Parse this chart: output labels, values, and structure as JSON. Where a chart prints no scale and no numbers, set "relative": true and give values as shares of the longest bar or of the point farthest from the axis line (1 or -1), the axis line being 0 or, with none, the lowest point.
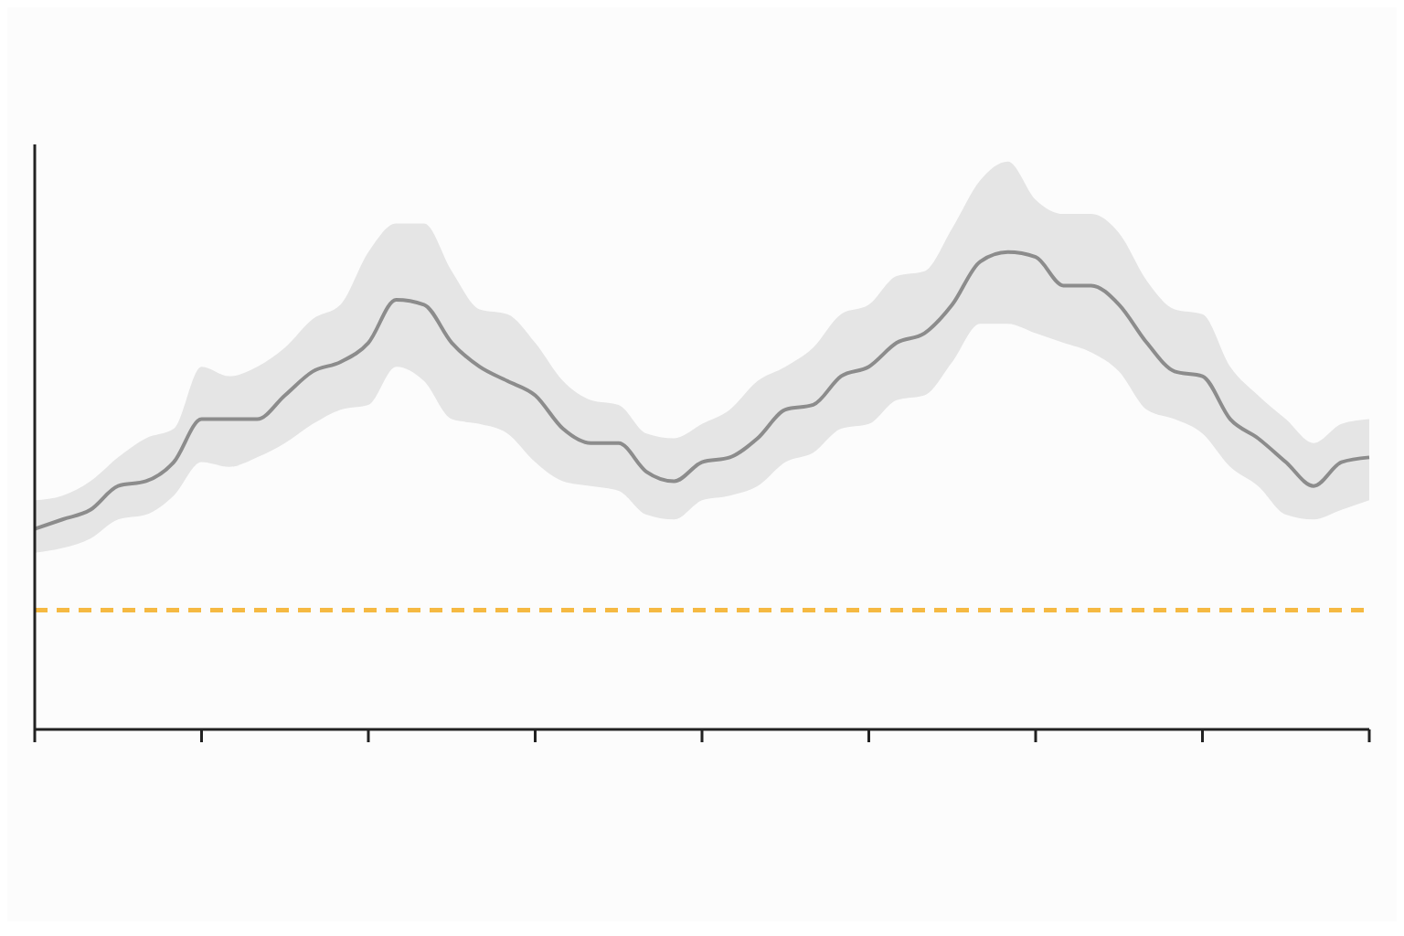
{
  "chart_data": {
    "type": "line",
    "relative": true,
    "grid": false,
    "legend": false,
    "categories": [
      null,
      null,
      null,
      null,
      null,
      null,
      null,
      null,
      null,
      null,
      null,
      null,
      null,
      null,
      null,
      null,
      null,
      null,
      null,
      null,
      null,
      null,
      null,
      null,
      null,
      null,
      null,
      null,
      null,
      null,
      null,
      null,
      null,
      null,
      null,
      null,
      null,
      null,
      null,
      null,
      null,
      null,
      null,
      null,
      null,
      null,
      null,
      null,
      null
    ],
    "series": [
      {
        "color": "#8c8c8c",
        "values": [
          0.42,
          0.44,
          0.46,
          0.51,
          0.52,
          0.56,
          0.65,
          0.65,
          0.65,
          0.7,
          0.75,
          0.77,
          0.81,
          0.9,
          0.89,
          0.81,
          0.76,
          0.73,
          0.7,
          0.63,
          0.6,
          0.6,
          0.54,
          0.52,
          0.56,
          0.57,
          0.61,
          0.67,
          0.68,
          0.74,
          0.76,
          0.81,
          0.83,
          0.89,
          0.98,
          1.0,
          0.99,
          0.93,
          0.93,
          0.89,
          0.81,
          0.75,
          0.74,
          0.65,
          0.61,
          0.56,
          0.51,
          0.56,
          0.57
        ],
        "upper": [
          0.48,
          0.49,
          0.52,
          0.57,
          0.61,
          0.63,
          0.76,
          0.74,
          0.76,
          0.8,
          0.86,
          0.89,
          1.0,
          1.06,
          1.06,
          0.96,
          0.88,
          0.87,
          0.81,
          0.73,
          0.69,
          0.68,
          0.62,
          0.61,
          0.64,
          0.67,
          0.73,
          0.76,
          0.8,
          0.87,
          0.89,
          0.95,
          0.96,
          1.05,
          1.15,
          1.19,
          1.11,
          1.08,
          1.08,
          1.04,
          0.94,
          0.88,
          0.87,
          0.76,
          0.7,
          0.65,
          0.6,
          0.64,
          0.65
        ],
        "lower": [
          0.37,
          0.38,
          0.4,
          0.44,
          0.45,
          0.49,
          0.56,
          0.55,
          0.57,
          0.6,
          0.64,
          0.67,
          0.68,
          0.76,
          0.73,
          0.65,
          0.64,
          0.62,
          0.56,
          0.52,
          0.51,
          0.5,
          0.45,
          0.44,
          0.48,
          0.49,
          0.51,
          0.56,
          0.58,
          0.63,
          0.64,
          0.69,
          0.7,
          0.77,
          0.85,
          0.85,
          0.83,
          0.81,
          0.79,
          0.75,
          0.67,
          0.65,
          0.62,
          0.55,
          0.51,
          0.45,
          0.44,
          0.46,
          0.48
        ]
      }
    ],
    "ref_lines": [
      {
        "axis": "y",
        "value": 0.25,
        "color": "#f5b942",
        "line_style": "dashed"
      }
    ]
  }
}
